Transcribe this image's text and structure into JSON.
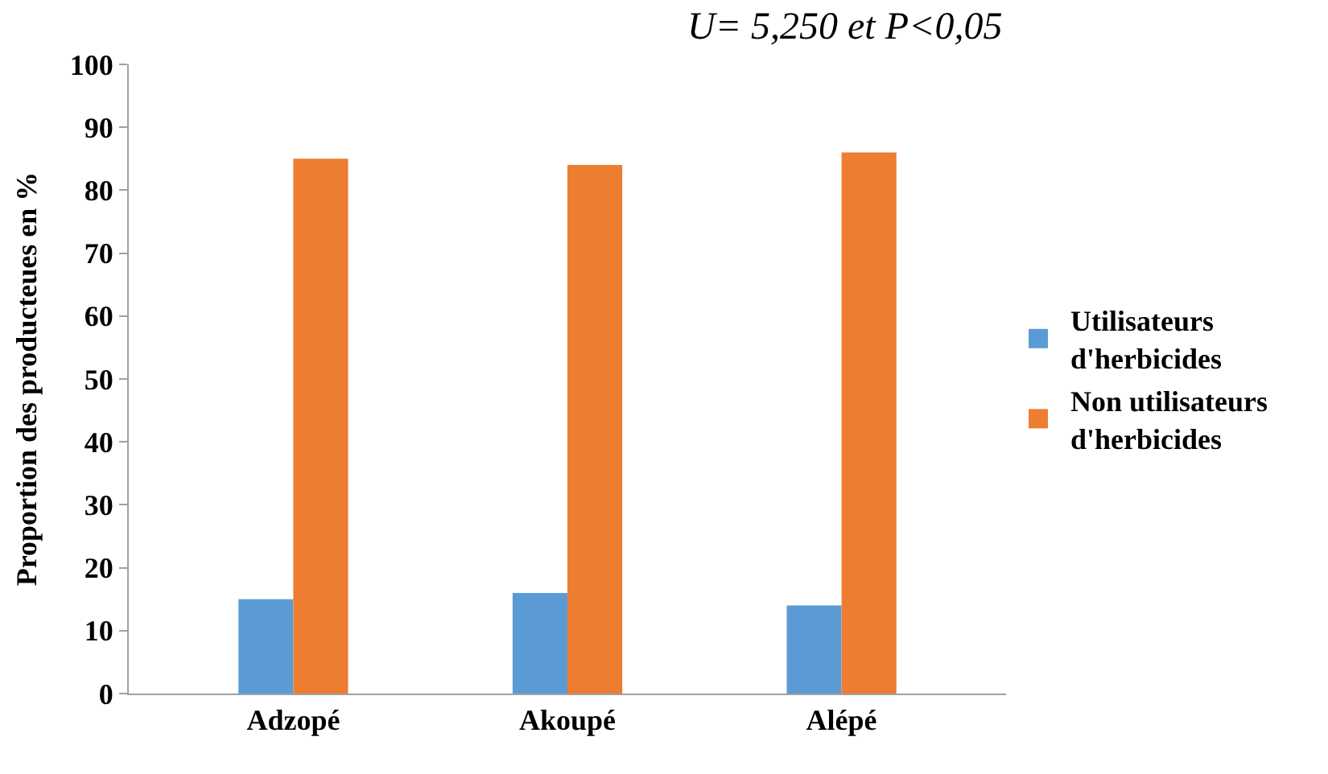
{
  "chart_data": {
    "type": "bar",
    "ylabel": "Proportion des producteues en %",
    "categories": [
      "Adzopé",
      "Akoupé",
      "Alépé"
    ],
    "series": [
      {
        "name": "Utilisateurs d'herbicides",
        "color": "#5b9bd5",
        "values": [
          15,
          16,
          14
        ]
      },
      {
        "name": "Non utilisateurs d'herbicides",
        "color": "#ed7d31",
        "values": [
          85,
          84,
          86
        ]
      }
    ],
    "ylim": [
      0,
      100
    ],
    "yticks": [
      0,
      10,
      20,
      30,
      40,
      50,
      60,
      70,
      80,
      90,
      100
    ],
    "annotations": [
      "U= 5,250 et P<0,05"
    ],
    "legend": "right"
  }
}
